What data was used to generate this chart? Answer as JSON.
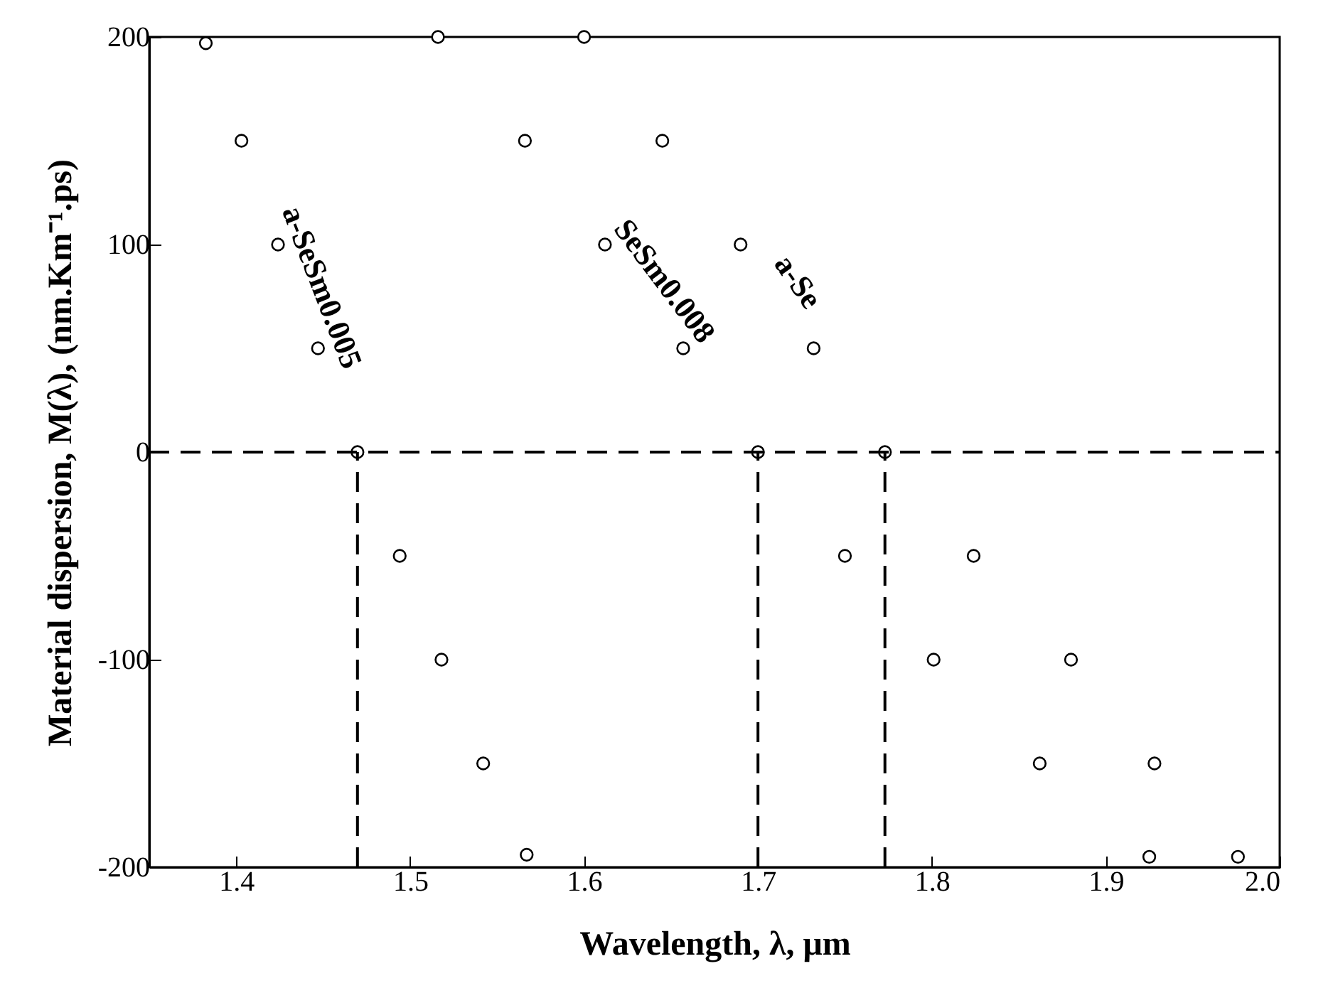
{
  "chart_data": {
    "type": "scatter",
    "xlabel": "Wavelength, λ, μm",
    "ylabel": "Material dispersion, M(λ), (nm.Km⁻¹.ps)",
    "xlim": [
      1.35,
      2.0
    ],
    "ylim": [
      -200,
      200
    ],
    "xticks": [
      1.4,
      1.5,
      1.6,
      1.7,
      1.8,
      1.9,
      {
        "value": 2.0,
        "label": "2.0"
      }
    ],
    "yticks": [
      -200,
      -100,
      0,
      100,
      200
    ],
    "marker": "circle",
    "grid": false,
    "series": [
      {
        "name": "a-SeSm0.005",
        "color": "#000000",
        "x": [
          1.3825,
          1.403,
          1.424,
          1.447,
          1.4697,
          1.494,
          1.518,
          1.542,
          1.567
        ],
        "values": [
          197,
          150,
          100,
          50,
          0,
          -50,
          -100,
          -150,
          -194
        ]
      },
      {
        "name": "SeSm0.008",
        "color": "#000000",
        "x": [
          1.516,
          1.566,
          1.612,
          1.657,
          1.7,
          1.75,
          1.801,
          1.862,
          1.925
        ],
        "values": [
          200,
          150,
          100,
          50,
          0,
          -50,
          -100,
          -150,
          -195
        ]
      },
      {
        "name": "a-Se",
        "color": "#000000",
        "x": [
          1.6,
          1.645,
          1.69,
          1.732,
          1.773,
          1.824,
          1.88,
          1.928,
          1.976
        ],
        "values": [
          200,
          150,
          100,
          50,
          0,
          -50,
          -100,
          -150,
          -195
        ]
      }
    ],
    "ref_lines": [
      {
        "axis": "y",
        "value": 0,
        "label": null,
        "line_style": "dashed",
        "color": "#000000"
      },
      {
        "axis": "x",
        "value": 1.4697,
        "label": null,
        "line_style": "dashed",
        "color": "#000000"
      },
      {
        "axis": "x",
        "value": 1.7,
        "label": null,
        "line_style": "dashed",
        "color": "#000000"
      },
      {
        "axis": "x",
        "value": 1.773,
        "label": null,
        "line_style": "dashed",
        "color": "#000000"
      }
    ]
  }
}
